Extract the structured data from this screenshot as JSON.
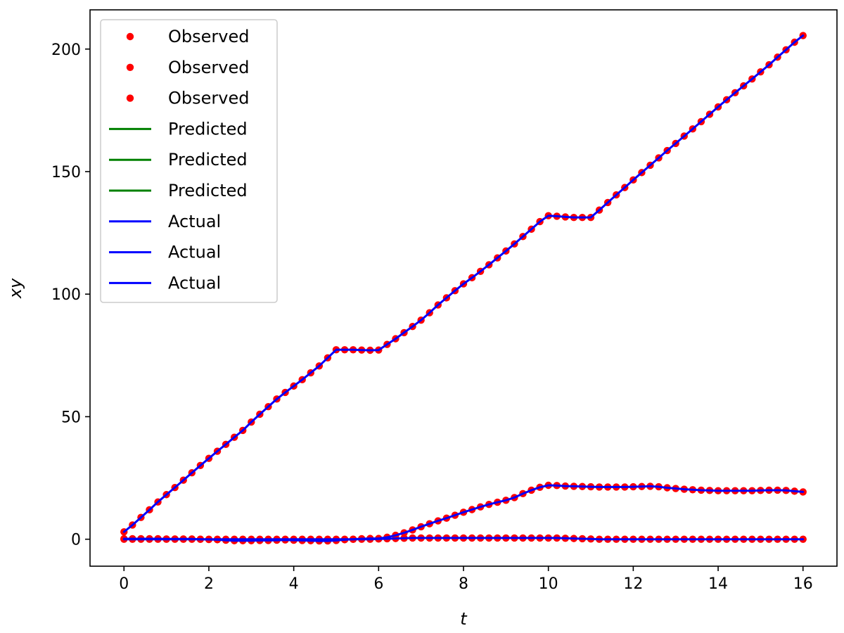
{
  "chart_data": {
    "type": "line",
    "title": "",
    "xlabel": "t",
    "ylabel": "xy",
    "xlim": [
      -0.8,
      16.8
    ],
    "ylim": [
      -11,
      216
    ],
    "xticks": [
      0,
      2,
      4,
      6,
      8,
      10,
      12,
      14,
      16
    ],
    "yticks": [
      0,
      50,
      100,
      150,
      200
    ],
    "grid": false,
    "legend_position": "top-left",
    "legend": [
      {
        "label": "Observed",
        "kind": "marker",
        "color": "#ff0000"
      },
      {
        "label": "Observed",
        "kind": "marker",
        "color": "#ff0000"
      },
      {
        "label": "Observed",
        "kind": "marker",
        "color": "#ff0000"
      },
      {
        "label": "Predicted",
        "kind": "line",
        "color": "#008000"
      },
      {
        "label": "Predicted",
        "kind": "line",
        "color": "#008000"
      },
      {
        "label": "Predicted",
        "kind": "line",
        "color": "#008000"
      },
      {
        "label": "Actual",
        "kind": "line",
        "color": "#0000ff"
      },
      {
        "label": "Actual",
        "kind": "line",
        "color": "#0000ff"
      },
      {
        "label": "Actual",
        "kind": "line",
        "color": "#0000ff"
      }
    ],
    "x": [
      0,
      0.2,
      0.4,
      0.6,
      0.8,
      1.0,
      1.2,
      1.4,
      1.6,
      1.8,
      2.0,
      2.2,
      2.4,
      2.6,
      2.8,
      3.0,
      3.2,
      3.4,
      3.6,
      3.8,
      4.0,
      4.2,
      4.4,
      4.6,
      4.8,
      5.0,
      5.2,
      5.4,
      5.6,
      5.8,
      6.0,
      6.2,
      6.4,
      6.6,
      6.8,
      7.0,
      7.2,
      7.4,
      7.6,
      7.8,
      8.0,
      8.2,
      8.4,
      8.6,
      8.8,
      9.0,
      9.2,
      9.4,
      9.6,
      9.8,
      10.0,
      10.2,
      10.4,
      10.6,
      10.8,
      11.0,
      11.2,
      11.4,
      11.6,
      11.8,
      12.0,
      12.2,
      12.4,
      12.6,
      12.8,
      13.0,
      13.2,
      13.4,
      13.6,
      13.8,
      14.0,
      14.2,
      14.4,
      14.6,
      14.8,
      15.0,
      15.2,
      15.4,
      15.6,
      15.8,
      16.0
    ],
    "series": [
      {
        "role": "observed",
        "color": "#ff0000",
        "values": [
          3,
          5.8,
          8.9,
          12.0,
          15.2,
          18.2,
          21.1,
          24.1,
          27.1,
          30.1,
          33.0,
          35.9,
          38.7,
          41.6,
          44.4,
          47.8,
          51.0,
          54.1,
          57.2,
          59.9,
          62.5,
          65.1,
          67.9,
          70.7,
          74.0,
          77.3,
          77.3,
          77.3,
          77.2,
          77.1,
          77.2,
          79.5,
          81.8,
          84.3,
          86.8,
          89.4,
          92.4,
          95.6,
          98.5,
          101.4,
          104.2,
          106.7,
          109.3,
          112.0,
          114.8,
          117.6,
          120.5,
          123.5,
          126.5,
          129.6,
          132.0,
          131.8,
          131.5,
          131.3,
          131.3,
          131.3,
          134.3,
          137.4,
          140.5,
          143.5,
          146.6,
          149.6,
          152.6,
          155.6,
          158.6,
          161.5,
          164.5,
          167.4,
          170.4,
          173.4,
          176.4,
          179.3,
          182.2,
          185.0,
          187.8,
          190.7,
          193.6,
          196.7,
          199.7,
          202.8,
          205.5
        ]
      },
      {
        "role": "observed",
        "color": "#ff0000",
        "values": [
          0.2,
          0.2,
          0.2,
          0.2,
          0.2,
          0.1,
          0.1,
          0.1,
          0.1,
          0,
          -0.1,
          -0.2,
          -0.4,
          -0.6,
          -0.6,
          -0.6,
          -0.5,
          -0.5,
          -0.4,
          -0.3,
          -0.4,
          -0.5,
          -0.6,
          -0.7,
          -0.7,
          -0.5,
          -0.2,
          0,
          0.2,
          0.3,
          0.3,
          0.8,
          1.6,
          2.6,
          3.8,
          5.1,
          6.3,
          7.5,
          8.6,
          9.8,
          11.0,
          12.1,
          13.2,
          14.2,
          15.1,
          15.9,
          17.0,
          18.6,
          20.0,
          21.2,
          22.0,
          21.9,
          21.7,
          21.6,
          21.5,
          21.4,
          21.3,
          21.3,
          21.3,
          21.3,
          21.4,
          21.5,
          21.6,
          21.4,
          21.0,
          20.7,
          20.4,
          20.2,
          20.0,
          19.9,
          19.8,
          19.8,
          19.8,
          19.8,
          19.8,
          19.9,
          20.0,
          20.0,
          19.9,
          19.6,
          19.3
        ]
      },
      {
        "role": "observed",
        "color": "#ff0000",
        "values": [
          0,
          0,
          0,
          0,
          0,
          0,
          0,
          0,
          0,
          0,
          0,
          0,
          0,
          0,
          0,
          0,
          0,
          0,
          0,
          0,
          0,
          0,
          0,
          0,
          0,
          0,
          0,
          0,
          0,
          0,
          0.1,
          0.2,
          0.3,
          0.4,
          0.5,
          0.5,
          0.5,
          0.5,
          0.5,
          0.5,
          0.5,
          0.5,
          0.5,
          0.5,
          0.5,
          0.5,
          0.5,
          0.5,
          0.5,
          0.5,
          0.5,
          0.5,
          0.4,
          0.3,
          0.2,
          0.1,
          0,
          0,
          0,
          0,
          0,
          0,
          0,
          0,
          0,
          0,
          0,
          0,
          0,
          0,
          0,
          0,
          0,
          0,
          0,
          0,
          0,
          0,
          0,
          0,
          0
        ]
      },
      {
        "role": "actual",
        "color": "#0000ff",
        "values": [
          3,
          5.8,
          8.9,
          12.0,
          15.2,
          18.2,
          21.1,
          24.1,
          27.1,
          30.1,
          33.0,
          35.9,
          38.7,
          41.6,
          44.4,
          47.8,
          51.0,
          54.1,
          57.2,
          59.9,
          62.5,
          65.1,
          67.9,
          70.7,
          74.0,
          77.3,
          77.3,
          77.3,
          77.2,
          77.1,
          77.2,
          79.5,
          81.8,
          84.3,
          86.8,
          89.4,
          92.4,
          95.6,
          98.5,
          101.4,
          104.2,
          106.7,
          109.3,
          112.0,
          114.8,
          117.6,
          120.5,
          123.5,
          126.5,
          129.6,
          132.0,
          131.8,
          131.5,
          131.3,
          131.3,
          131.3,
          134.3,
          137.4,
          140.5,
          143.5,
          146.6,
          149.6,
          152.6,
          155.6,
          158.6,
          161.5,
          164.5,
          167.4,
          170.4,
          173.4,
          176.4,
          179.3,
          182.2,
          185.0,
          187.8,
          190.7,
          193.6,
          196.7,
          199.7,
          202.8,
          205.5
        ]
      },
      {
        "role": "actual",
        "color": "#0000ff",
        "values": [
          0.2,
          0.2,
          0.2,
          0.2,
          0.2,
          0.1,
          0.1,
          0.1,
          0.1,
          0,
          -0.1,
          -0.2,
          -0.4,
          -0.6,
          -0.6,
          -0.6,
          -0.5,
          -0.5,
          -0.4,
          -0.3,
          -0.4,
          -0.5,
          -0.6,
          -0.7,
          -0.7,
          -0.5,
          -0.2,
          0,
          0.2,
          0.3,
          0.3,
          0.8,
          1.6,
          2.6,
          3.8,
          5.1,
          6.3,
          7.5,
          8.6,
          9.8,
          11.0,
          12.1,
          13.2,
          14.2,
          15.1,
          15.9,
          17.0,
          18.6,
          20.0,
          21.2,
          22.0,
          21.9,
          21.7,
          21.6,
          21.5,
          21.4,
          21.3,
          21.3,
          21.3,
          21.3,
          21.4,
          21.5,
          21.6,
          21.4,
          21.0,
          20.7,
          20.4,
          20.2,
          20.0,
          19.9,
          19.8,
          19.8,
          19.8,
          19.8,
          19.8,
          19.9,
          20.0,
          20.0,
          19.9,
          19.6,
          19.3
        ]
      },
      {
        "role": "actual",
        "color": "#0000ff",
        "values": [
          0,
          0,
          0,
          0,
          0,
          0,
          0,
          0,
          0,
          0,
          0,
          0,
          0,
          0,
          0,
          0,
          0,
          0,
          0,
          0,
          0,
          0,
          0,
          0,
          0,
          0,
          0,
          0,
          0,
          0,
          0.1,
          0.2,
          0.3,
          0.4,
          0.5,
          0.5,
          0.5,
          0.5,
          0.5,
          0.5,
          0.5,
          0.5,
          0.5,
          0.5,
          0.5,
          0.5,
          0.5,
          0.5,
          0.5,
          0.5,
          0.5,
          0.5,
          0.4,
          0.3,
          0.2,
          0.1,
          0,
          0,
          0,
          0,
          0,
          0,
          0,
          0,
          0,
          0,
          0,
          0,
          0,
          0,
          0,
          0,
          0,
          0,
          0,
          0,
          0,
          0,
          0,
          0,
          0
        ]
      }
    ]
  }
}
